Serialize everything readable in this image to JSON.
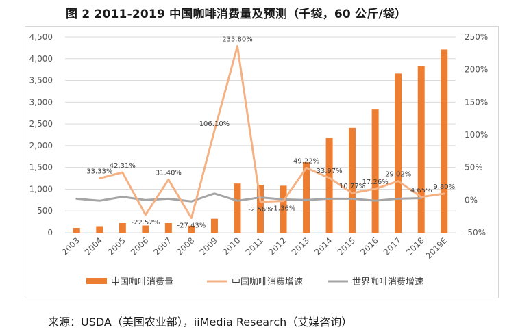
{
  "title": "图 2 2011-2019 中国咖啡消费量及预测（千袋，60 公斤/袋）",
  "source": "来源：USDA（美国农业部），iiMedia Research（艾媒咨询）",
  "colors": {
    "bar": "#ed7d31",
    "china_growth": "#f4b183",
    "world_growth": "#a5a5a5"
  },
  "chart_data": {
    "type": "bar",
    "categories": [
      "2003",
      "2004",
      "2005",
      "2006",
      "2007",
      "2008",
      "2009",
      "2010",
      "2011",
      "2012",
      "2013",
      "2014",
      "2015",
      "2016",
      "2017",
      "2018",
      "2019E"
    ],
    "left_axis": {
      "ylim": [
        0,
        4500
      ],
      "ticks": [
        "0",
        "500",
        "1,000",
        "1,500",
        "2,000",
        "2,500",
        "3,000",
        "3,500",
        "4,000",
        "4,500"
      ]
    },
    "right_axis": {
      "ylim": [
        -50,
        250
      ],
      "ticks": [
        "-50%",
        "0%",
        "50%",
        "100%",
        "150%",
        "200%",
        "250%"
      ]
    },
    "series": [
      {
        "name": "中国咖啡消费量",
        "type": "bar",
        "axis": "left",
        "values": [
          110,
          150,
          220,
          165,
          220,
          160,
          320,
          1130,
          1100,
          1080,
          1620,
          2180,
          2410,
          2830,
          3660,
          3830,
          4210
        ]
      },
      {
        "name": "中国咖啡消费增速",
        "type": "line",
        "axis": "right",
        "values": [
          null,
          33.33,
          42.31,
          -22.52,
          31.4,
          -27.43,
          106.1,
          235.8,
          -2.56,
          -1.36,
          49.22,
          33.97,
          10.77,
          17.26,
          29.02,
          4.65,
          9.8
        ],
        "labels": [
          "",
          "33.33%",
          "42.31%",
          "-22.52%",
          "31.40%",
          "-27.43%",
          "106.10%",
          "235.80%",
          "-2.56%",
          "-1.36%",
          "49.22%",
          "33.97%",
          "10.77%",
          "17.26%",
          "29.02%",
          "4.65%",
          "9.80%"
        ]
      },
      {
        "name": "世界咖啡消费增速",
        "type": "line",
        "axis": "right",
        "values": [
          2,
          -1,
          5,
          0,
          2,
          -2,
          10,
          -1,
          4,
          1,
          0,
          2,
          2,
          -1,
          2,
          3,
          null
        ]
      }
    ],
    "legend": "bottom"
  }
}
